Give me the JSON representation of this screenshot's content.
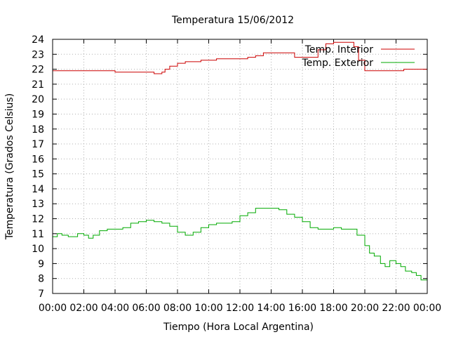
{
  "chart_data": {
    "type": "line",
    "title": "Temperatura 15/06/2012",
    "xlabel": "Tiempo (Hora Local Argentina)",
    "ylabel": "Temperatura (Grados Celsius)",
    "xlim": [
      "00:00",
      "24:00"
    ],
    "ylim": [
      7,
      24
    ],
    "x_ticks": [
      "00:00",
      "02:00",
      "04:00",
      "06:00",
      "08:00",
      "10:00",
      "12:00",
      "14:00",
      "16:00",
      "18:00",
      "20:00",
      "22:00",
      "00:00"
    ],
    "y_ticks": [
      7,
      8,
      9,
      10,
      11,
      12,
      13,
      14,
      15,
      16,
      17,
      18,
      19,
      20,
      21,
      22,
      23,
      24
    ],
    "grid": true,
    "legend_position": "top-right",
    "x_unit": "hours since 00:00 (15/06/2012)",
    "series": [
      {
        "name": "Temp. Interior",
        "color": "#cc0000",
        "x": [
          0,
          0.5,
          1,
          1.5,
          2,
          3,
          4,
          4.5,
          5,
          5.5,
          6,
          6.3,
          6.5,
          6.8,
          7,
          7.2,
          7.5,
          8,
          8.5,
          9,
          9.5,
          10,
          10.5,
          11,
          11.5,
          12,
          12.5,
          13,
          13.5,
          14,
          14.5,
          15,
          15.5,
          16,
          16.5,
          17,
          17.5,
          18,
          18.5,
          19,
          19.3,
          19.6,
          20,
          20.3,
          20.6,
          21,
          21.5,
          22,
          22.5,
          23,
          24
        ],
        "y": [
          21.9,
          21.9,
          21.9,
          21.9,
          21.9,
          21.9,
          21.8,
          21.8,
          21.8,
          21.8,
          21.8,
          21.8,
          21.7,
          21.7,
          21.8,
          22.0,
          22.2,
          22.4,
          22.5,
          22.5,
          22.6,
          22.6,
          22.7,
          22.7,
          22.7,
          22.7,
          22.8,
          22.9,
          23.1,
          23.1,
          23.1,
          23.1,
          22.8,
          22.8,
          22.8,
          23.3,
          23.7,
          23.8,
          23.8,
          23.8,
          23.5,
          22.6,
          21.9,
          21.9,
          21.9,
          21.9,
          21.9,
          21.9,
          22.0,
          22.0,
          22.0
        ]
      },
      {
        "name": "Temp. Exterior",
        "color": "#00aa00",
        "x": [
          0,
          0.3,
          0.6,
          1,
          1.3,
          1.6,
          2,
          2.3,
          2.6,
          3,
          3.5,
          4,
          4.5,
          5,
          5.5,
          6,
          6.5,
          7,
          7.5,
          8,
          8.5,
          9,
          9.5,
          10,
          10.5,
          11,
          11.5,
          12,
          12.5,
          13,
          13.5,
          14,
          14.5,
          15,
          15.5,
          16,
          16.5,
          17,
          17.5,
          18,
          18.5,
          19,
          19.5,
          20,
          20.3,
          20.6,
          21,
          21.3,
          21.6,
          22,
          22.3,
          22.6,
          23,
          23.3,
          23.6,
          24
        ],
        "y": [
          10.8,
          11.0,
          10.9,
          10.8,
          10.8,
          11.0,
          10.9,
          10.7,
          10.9,
          11.2,
          11.3,
          11.3,
          11.4,
          11.7,
          11.8,
          11.9,
          11.8,
          11.7,
          11.5,
          11.1,
          10.9,
          11.1,
          11.4,
          11.6,
          11.7,
          11.7,
          11.8,
          12.2,
          12.4,
          12.7,
          12.7,
          12.7,
          12.6,
          12.3,
          12.1,
          11.8,
          11.4,
          11.3,
          11.3,
          11.4,
          11.3,
          11.3,
          10.9,
          10.2,
          9.7,
          9.5,
          9.0,
          8.8,
          9.2,
          9.0,
          8.8,
          8.5,
          8.4,
          8.2,
          7.9,
          7.7
        ]
      }
    ]
  }
}
